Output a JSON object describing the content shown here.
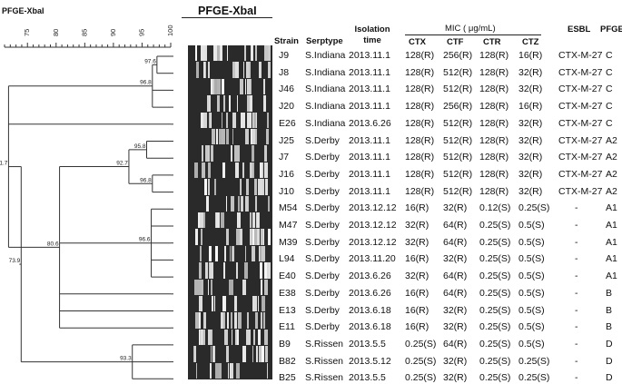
{
  "title_left": "PFGE-XbaI",
  "title_gel": "PFGE-XbaI",
  "scale": {
    "ticks": [
      "75",
      "80",
      "85",
      "90",
      "95",
      "100"
    ],
    "min": 71,
    "max": 100
  },
  "headers": {
    "strain": "Strain",
    "serotype": "Serptype",
    "isolation_time": "Isolation time",
    "mic_group": "MIC ( μg/mL)",
    "ctx": "CTX",
    "ctf": "CTF",
    "ctr": "CTR",
    "ctz": "CTZ",
    "esbl": "ESBL",
    "pfge": "PFGE"
  },
  "rows": [
    {
      "strain": "J9",
      "serotype": "S.Indiana",
      "time": "2013.11.1",
      "ctx": "128(R)",
      "ctf": "256(R)",
      "ctr": "128(R)",
      "ctz": "16(R)",
      "esbl": "CTX-M-27",
      "pfge": "C"
    },
    {
      "strain": "J8",
      "serotype": "S.Indiana",
      "time": "2013.11.1",
      "ctx": "128(R)",
      "ctf": "512(R)",
      "ctr": "128(R)",
      "ctz": "32(R)",
      "esbl": "CTX-M-27",
      "pfge": "C"
    },
    {
      "strain": "J46",
      "serotype": "S.Indiana",
      "time": "2013.11.1",
      "ctx": "128(R)",
      "ctf": "512(R)",
      "ctr": "128(R)",
      "ctz": "32(R)",
      "esbl": "CTX-M-27",
      "pfge": "C"
    },
    {
      "strain": "J20",
      "serotype": "S.Indiana",
      "time": "2013.11.1",
      "ctx": "128(R)",
      "ctf": "256(R)",
      "ctr": "128(R)",
      "ctz": "16(R)",
      "esbl": "CTX-M-27",
      "pfge": "C"
    },
    {
      "strain": "E26",
      "serotype": "S.Indiana",
      "time": "2013.6.26",
      "ctx": "128(R)",
      "ctf": "512(R)",
      "ctr": "128(R)",
      "ctz": "32(R)",
      "esbl": "CTX-M-27",
      "pfge": "C"
    },
    {
      "strain": "J25",
      "serotype": "S.Derby",
      "time": "2013.11.1",
      "ctx": "128(R)",
      "ctf": "512(R)",
      "ctr": "128(R)",
      "ctz": "32(R)",
      "esbl": "CTX-M-27",
      "pfge": "A2"
    },
    {
      "strain": "J7",
      "serotype": "S.Derby",
      "time": "2013.11.1",
      "ctx": "128(R)",
      "ctf": "512(R)",
      "ctr": "128(R)",
      "ctz": "32(R)",
      "esbl": "CTX-M-27",
      "pfge": "A2"
    },
    {
      "strain": "J16",
      "serotype": "S.Derby",
      "time": "2013.11.1",
      "ctx": "128(R)",
      "ctf": "512(R)",
      "ctr": "128(R)",
      "ctz": "32(R)",
      "esbl": "CTX-M-27",
      "pfge": "A2"
    },
    {
      "strain": "J10",
      "serotype": "S.Derby",
      "time": "2013.11.1",
      "ctx": "128(R)",
      "ctf": "512(R)",
      "ctr": "128(R)",
      "ctz": "32(R)",
      "esbl": "CTX-M-27",
      "pfge": "A2"
    },
    {
      "strain": "M54",
      "serotype": "S.Derby",
      "time": "2013.12.12",
      "ctx": "16(R)",
      "ctf": "32(R)",
      "ctr": "0.12(S)",
      "ctz": "0.25(S)",
      "esbl": "-",
      "pfge": "A1"
    },
    {
      "strain": "M47",
      "serotype": "S.Derby",
      "time": "2013.12.12",
      "ctx": "32(R)",
      "ctf": "64(R)",
      "ctr": "0.25(S)",
      "ctz": "0.5(S)",
      "esbl": "-",
      "pfge": "A1"
    },
    {
      "strain": "M39",
      "serotype": "S.Derby",
      "time": "2013.12.12",
      "ctx": "32(R)",
      "ctf": "64(R)",
      "ctr": "0.25(S)",
      "ctz": "0.5(S)",
      "esbl": "-",
      "pfge": "A1"
    },
    {
      "strain": "L94",
      "serotype": "S.Derby",
      "time": "2013.11.20",
      "ctx": "16(R)",
      "ctf": "32(R)",
      "ctr": "0.25(S)",
      "ctz": "0.5(S)",
      "esbl": "-",
      "pfge": "A1"
    },
    {
      "strain": "E40",
      "serotype": "S.Derby",
      "time": "2013.6.26",
      "ctx": "32(R)",
      "ctf": "64(R)",
      "ctr": "0.25(S)",
      "ctz": "0.5(S)",
      "esbl": "-",
      "pfge": "A1"
    },
    {
      "strain": "E38",
      "serotype": "S.Derby",
      "time": "2013.6.26",
      "ctx": "16(R)",
      "ctf": "64(R)",
      "ctr": "0.25(S)",
      "ctz": "0.5(S)",
      "esbl": "-",
      "pfge": "B"
    },
    {
      "strain": "E13",
      "serotype": "S.Derby",
      "time": "2013.6.18",
      "ctx": "16(R)",
      "ctf": "32(R)",
      "ctr": "0.25(S)",
      "ctz": "0.5(S)",
      "esbl": "-",
      "pfge": "B"
    },
    {
      "strain": "E11",
      "serotype": "S.Derby",
      "time": "2013.6.18",
      "ctx": "16(R)",
      "ctf": "32(R)",
      "ctr": "0.25(S)",
      "ctz": "0.5(S)",
      "esbl": "-",
      "pfge": "B"
    },
    {
      "strain": "B9",
      "serotype": "S.Rissen",
      "time": "2013.5.5",
      "ctx": "0.25(S)",
      "ctf": "64(R)",
      "ctr": "0.25(S)",
      "ctz": "0.5(S)",
      "esbl": "-",
      "pfge": "D"
    },
    {
      "strain": "B82",
      "serotype": "S.Rissen",
      "time": "2013.5.12",
      "ctx": "0.25(S)",
      "ctf": "32(R)",
      "ctr": "0.25(S)",
      "ctz": "0.25(S)",
      "esbl": "-",
      "pfge": "D"
    },
    {
      "strain": "B25",
      "serotype": "S.Rissen",
      "time": "2013.5.5",
      "ctx": "0.25(S)",
      "ctf": "32(R)",
      "ctr": "0.25(S)",
      "ctz": "0.25(S)",
      "esbl": "-",
      "pfge": "D"
    }
  ],
  "dendrogram_nodes": [
    {
      "label": "97.6",
      "similarity": 97.6,
      "leaves": [
        0,
        1
      ]
    },
    {
      "label": "96.8",
      "similarity": 96.8,
      "leaves": [
        0,
        3
      ]
    },
    {
      "label": "95.8",
      "similarity": 95.8,
      "leaves": [
        5,
        6
      ]
    },
    {
      "label": "96.8",
      "similarity": 96.8,
      "leaves": [
        7,
        8
      ]
    },
    {
      "label": "92.7",
      "similarity": 92.7,
      "leaves": [
        5,
        8
      ]
    },
    {
      "label": "96.6",
      "similarity": 96.6,
      "leaves": [
        9,
        13
      ]
    },
    {
      "label": "80.6",
      "similarity": 80.6,
      "leaves": [
        5,
        16
      ]
    },
    {
      "label": "71.7",
      "similarity": 71.7,
      "leaves": [
        0,
        16
      ]
    },
    {
      "label": "93.3",
      "similarity": 93.3,
      "leaves": [
        17,
        19
      ]
    },
    {
      "label": "73.9",
      "similarity": 73.9,
      "leaves": [
        0,
        19
      ]
    }
  ]
}
